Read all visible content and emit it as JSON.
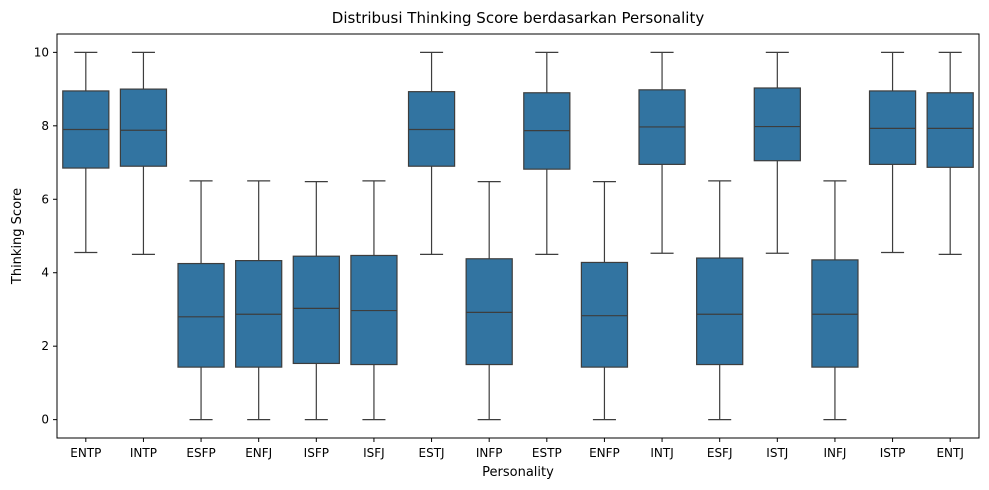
{
  "chart_data": {
    "type": "box",
    "title": "Distribusi Thinking Score berdasarkan Personality",
    "xlabel": "Personality",
    "ylabel": "Thinking Score",
    "ylim": [
      -0.5,
      10.5
    ],
    "yticks": [
      0,
      2,
      4,
      6,
      8,
      10
    ],
    "grid": false,
    "box_color": "#3274a1",
    "line_color": "#3d3d3d",
    "categories": [
      "ENTP",
      "INTP",
      "ESFP",
      "ENFJ",
      "ISFP",
      "ISFJ",
      "ESTJ",
      "INFP",
      "ESTP",
      "ENFP",
      "INTJ",
      "ESFJ",
      "ISTJ",
      "INFJ",
      "ISTP",
      "ENTJ"
    ],
    "boxes": [
      {
        "whisker_low": 4.55,
        "q1": 6.85,
        "median": 7.9,
        "q3": 8.95,
        "whisker_high": 10.0
      },
      {
        "whisker_low": 4.5,
        "q1": 6.9,
        "median": 7.88,
        "q3": 9.0,
        "whisker_high": 10.0
      },
      {
        "whisker_low": 0.0,
        "q1": 1.43,
        "median": 2.8,
        "q3": 4.25,
        "whisker_high": 6.5
      },
      {
        "whisker_low": 0.0,
        "q1": 1.43,
        "median": 2.87,
        "q3": 4.33,
        "whisker_high": 6.5
      },
      {
        "whisker_low": 0.0,
        "q1": 1.53,
        "median": 3.03,
        "q3": 4.45,
        "whisker_high": 6.48
      },
      {
        "whisker_low": 0.0,
        "q1": 1.5,
        "median": 2.97,
        "q3": 4.47,
        "whisker_high": 6.5
      },
      {
        "whisker_low": 4.5,
        "q1": 6.9,
        "median": 7.9,
        "q3": 8.93,
        "whisker_high": 10.0
      },
      {
        "whisker_low": 0.0,
        "q1": 1.5,
        "median": 2.92,
        "q3": 4.38,
        "whisker_high": 6.48
      },
      {
        "whisker_low": 4.5,
        "q1": 6.82,
        "median": 7.87,
        "q3": 8.9,
        "whisker_high": 10.0
      },
      {
        "whisker_low": 0.0,
        "q1": 1.43,
        "median": 2.83,
        "q3": 4.28,
        "whisker_high": 6.48
      },
      {
        "whisker_low": 4.53,
        "q1": 6.95,
        "median": 7.97,
        "q3": 8.98,
        "whisker_high": 10.0
      },
      {
        "whisker_low": 0.0,
        "q1": 1.5,
        "median": 2.87,
        "q3": 4.4,
        "whisker_high": 6.5
      },
      {
        "whisker_low": 4.53,
        "q1": 7.05,
        "median": 7.98,
        "q3": 9.03,
        "whisker_high": 10.0
      },
      {
        "whisker_low": 0.0,
        "q1": 1.43,
        "median": 2.87,
        "q3": 4.35,
        "whisker_high": 6.5
      },
      {
        "whisker_low": 4.55,
        "q1": 6.95,
        "median": 7.93,
        "q3": 8.95,
        "whisker_high": 10.0
      },
      {
        "whisker_low": 4.5,
        "q1": 6.87,
        "median": 7.93,
        "q3": 8.9,
        "whisker_high": 10.0
      }
    ]
  }
}
